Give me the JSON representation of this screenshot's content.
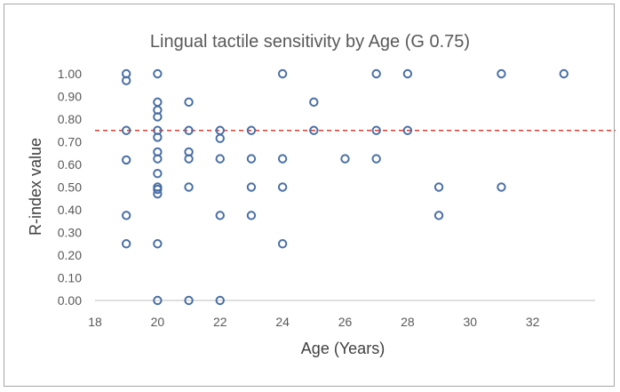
{
  "chart_data": {
    "type": "scatter",
    "title": "Lingual tactile sensitivity by Age (G 0.75)",
    "xlabel": "Age (Years)",
    "ylabel": "R-index value",
    "xlim": [
      18,
      34
    ],
    "ylim": [
      0,
      1.0
    ],
    "x_ticks": [
      18,
      20,
      22,
      24,
      26,
      28,
      30,
      32
    ],
    "y_ticks": [
      "0.00",
      "0.10",
      "0.20",
      "0.30",
      "0.40",
      "0.50",
      "0.60",
      "0.70",
      "0.80",
      "0.90",
      "1.00"
    ],
    "reference_line": {
      "y": 0.75,
      "style": "dashed",
      "color": "#e03c31"
    },
    "grid": false,
    "marker_color": "#4a6fa5",
    "points": [
      [
        19,
        1.0
      ],
      [
        19,
        0.97
      ],
      [
        19,
        0.75
      ],
      [
        19,
        0.62
      ],
      [
        19,
        0.375
      ],
      [
        19,
        0.25
      ],
      [
        20,
        1.0
      ],
      [
        20,
        0.875
      ],
      [
        20,
        0.84
      ],
      [
        20,
        0.81
      ],
      [
        20,
        0.75
      ],
      [
        20,
        0.72
      ],
      [
        20,
        0.655
      ],
      [
        20,
        0.625
      ],
      [
        20,
        0.56
      ],
      [
        20,
        0.5
      ],
      [
        20,
        0.49
      ],
      [
        20,
        0.47
      ],
      [
        20,
        0.25
      ],
      [
        20,
        0.0
      ],
      [
        21,
        0.875
      ],
      [
        21,
        0.75
      ],
      [
        21,
        0.655
      ],
      [
        21,
        0.625
      ],
      [
        21,
        0.5
      ],
      [
        21,
        0.0
      ],
      [
        22,
        0.75
      ],
      [
        22,
        0.715
      ],
      [
        22,
        0.625
      ],
      [
        22,
        0.375
      ],
      [
        22,
        0.0
      ],
      [
        23,
        0.75
      ],
      [
        23,
        0.625
      ],
      [
        23,
        0.5
      ],
      [
        23,
        0.375
      ],
      [
        24,
        1.0
      ],
      [
        24,
        0.625
      ],
      [
        24,
        0.5
      ],
      [
        24,
        0.25
      ],
      [
        25,
        0.875
      ],
      [
        25,
        0.75
      ],
      [
        26,
        0.625
      ],
      [
        27,
        1.0
      ],
      [
        27,
        0.75
      ],
      [
        27,
        0.625
      ],
      [
        28,
        1.0
      ],
      [
        28,
        0.75
      ],
      [
        29,
        0.5
      ],
      [
        29,
        0.375
      ],
      [
        31,
        1.0
      ],
      [
        31,
        0.5
      ],
      [
        33,
        1.0
      ]
    ]
  }
}
